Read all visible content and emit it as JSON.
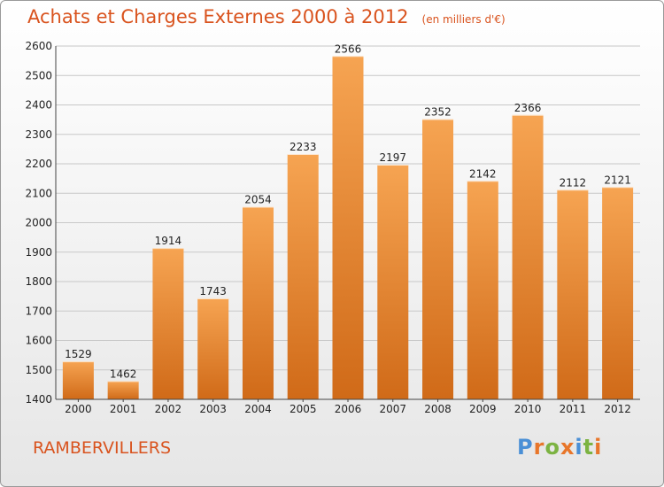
{
  "title": "Achats et Charges Externes 2000 à 2012",
  "unit_note": "(en milliers d'€)",
  "location": "RAMBERVILLERS",
  "logo": {
    "text": "Proxiti",
    "letter_colors": [
      "#4a8fd6",
      "#e8762a",
      "#7cb342",
      "#e8762a",
      "#4a8fd6",
      "#7cb342",
      "#e8762a"
    ]
  },
  "colors": {
    "bar_light": "#f6a452",
    "bar_dark": "#d06a18",
    "accent": "#d9531e",
    "grid": "#c8c8c8"
  },
  "chart_data": {
    "type": "bar",
    "title": "Achats et Charges Externes 2000 à 2012",
    "categories": [
      "2000",
      "2001",
      "2002",
      "2003",
      "2004",
      "2005",
      "2006",
      "2007",
      "2008",
      "2009",
      "2010",
      "2011",
      "2012"
    ],
    "values": [
      1529,
      1462,
      1914,
      1743,
      2054,
      2233,
      2566,
      2197,
      2352,
      2142,
      2366,
      2112,
      2121
    ],
    "ylim": [
      1400,
      2600
    ],
    "yticks": [
      1400,
      1500,
      1600,
      1700,
      1800,
      1900,
      2000,
      2100,
      2200,
      2300,
      2400,
      2500,
      2600
    ],
    "grid": true,
    "xlabel": "",
    "ylabel": ""
  }
}
